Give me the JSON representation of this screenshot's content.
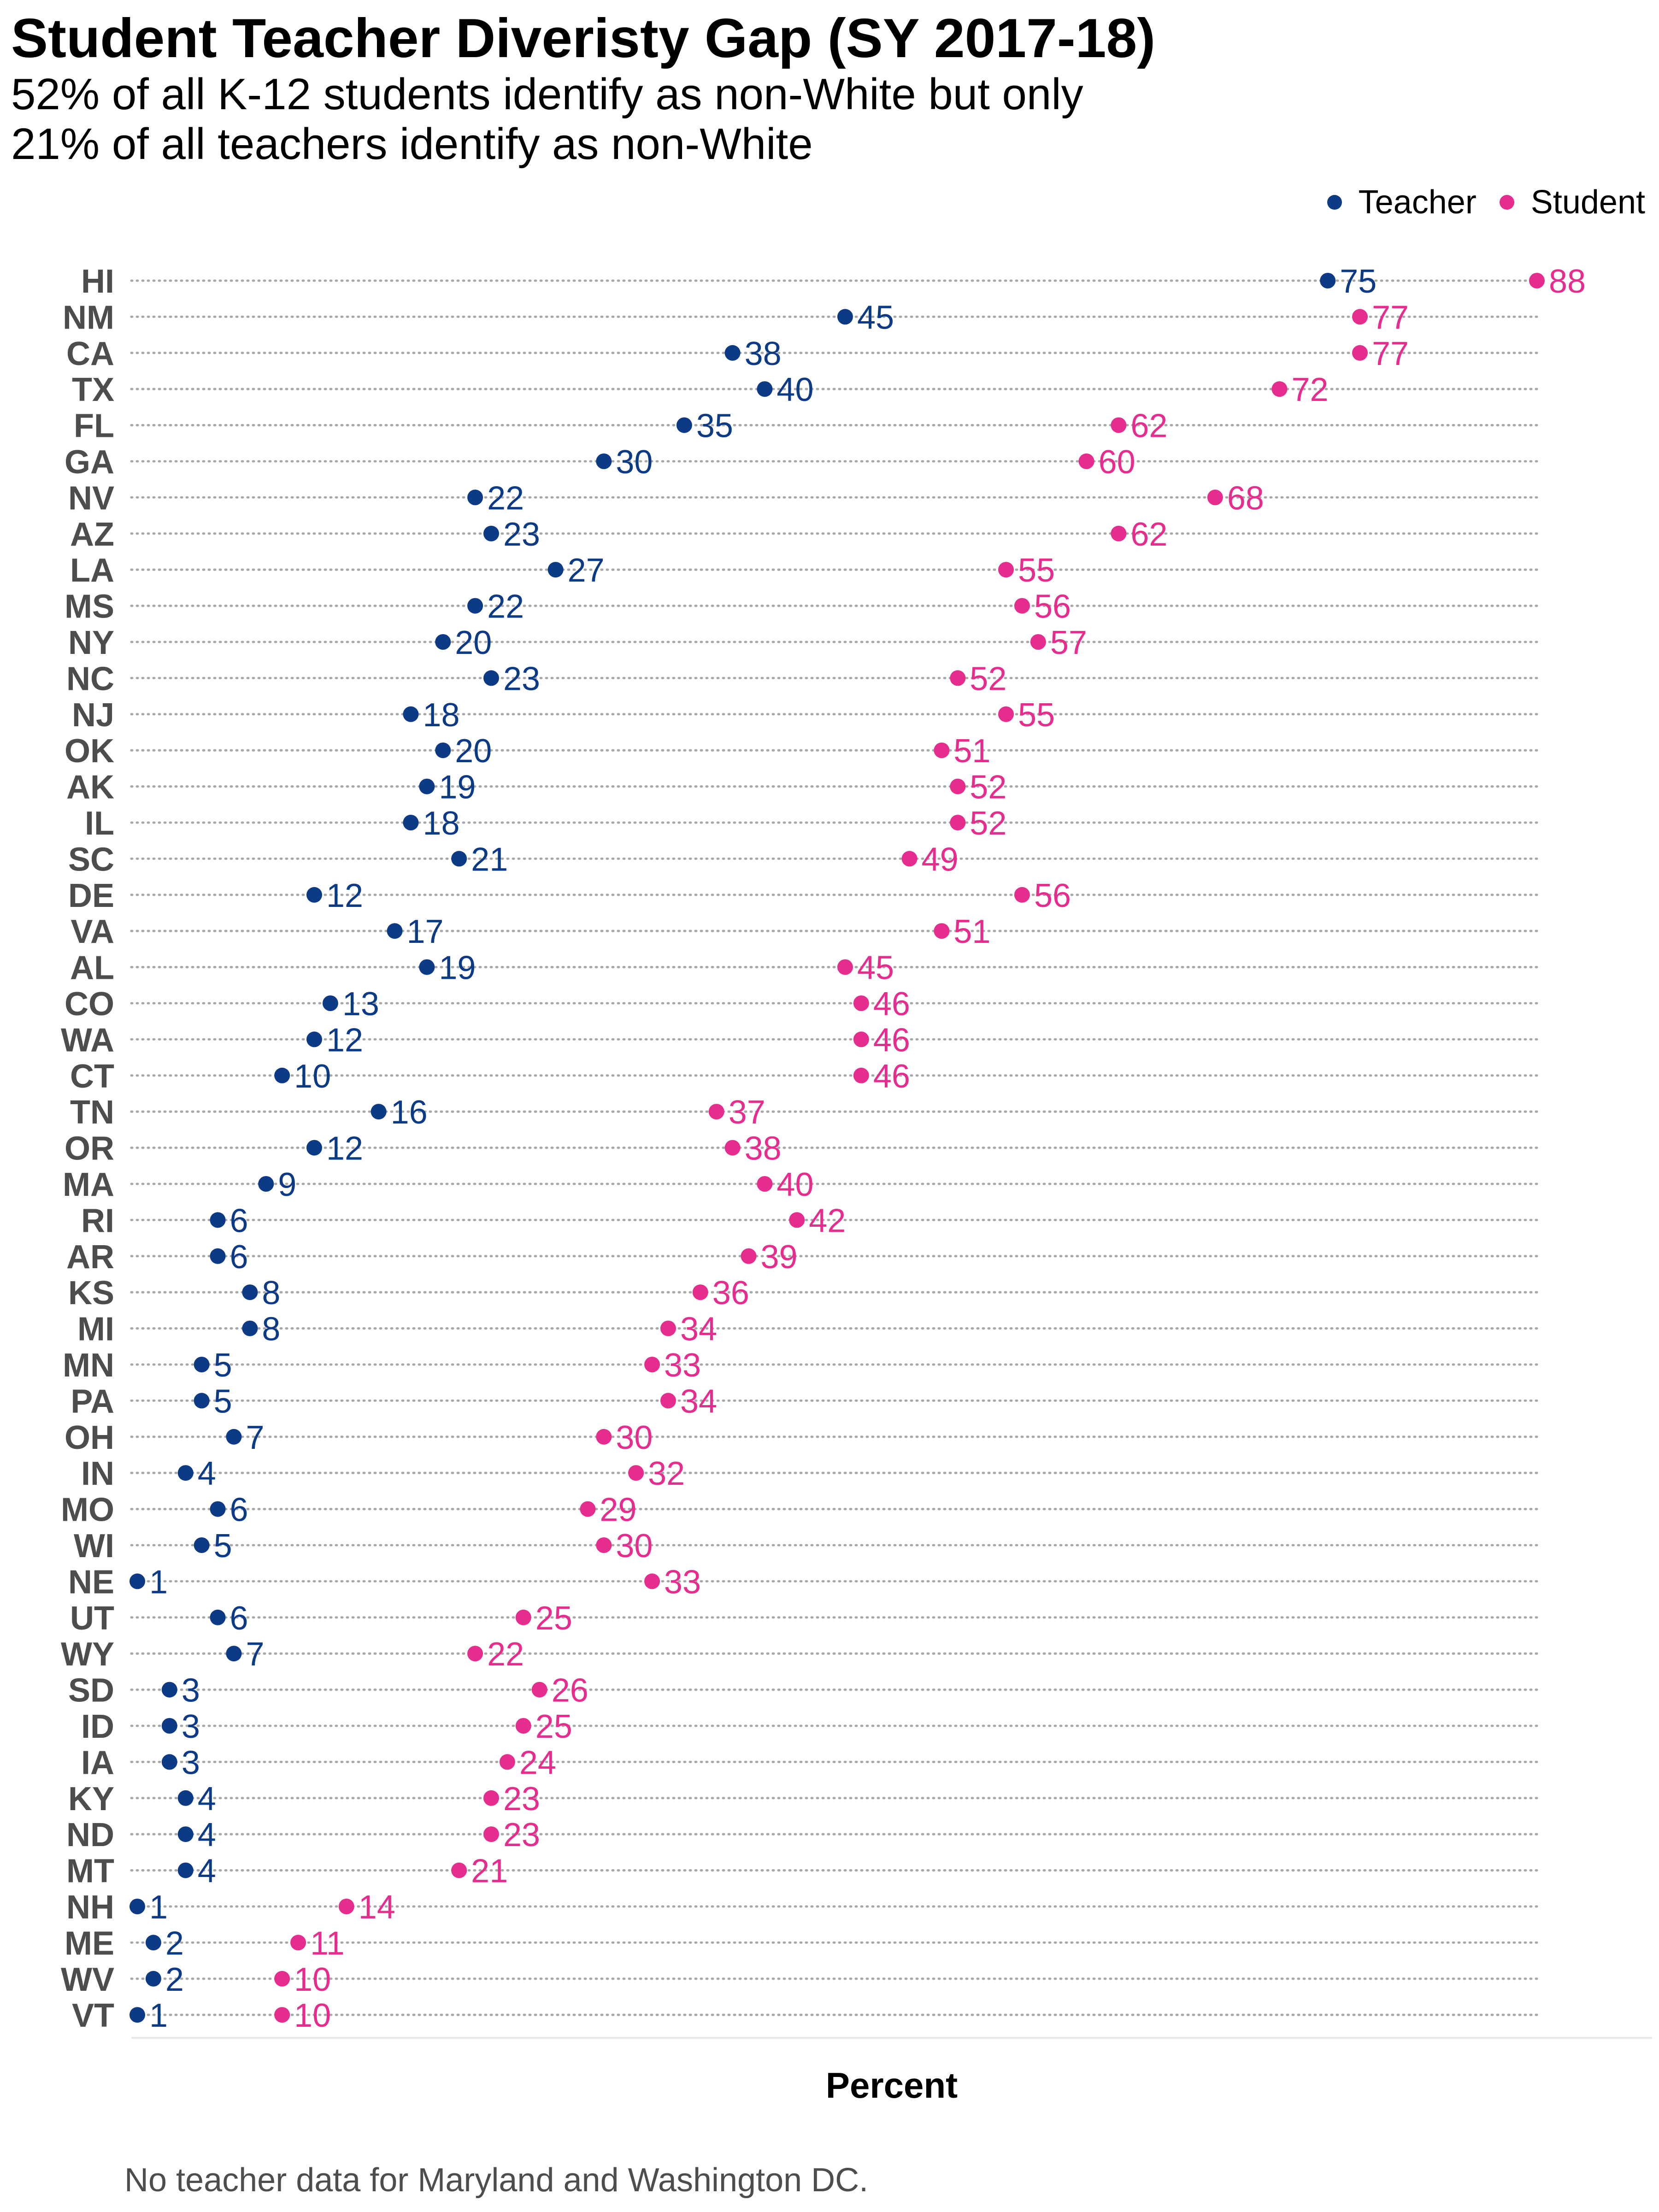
{
  "chart_data": {
    "type": "dot",
    "title": "Student Teacher Diveristy Gap (SY 2017-18)",
    "subtitle": [
      "52% of all K-12 students identify as non-White but only",
      "21% of all teachers identify as non-White"
    ],
    "xlabel": "Percent",
    "ylabel": "",
    "caption": "No teacher data for Maryland and Washington DC.",
    "legend": {
      "position": "top-right",
      "entries": [
        "Teacher",
        "Student"
      ]
    },
    "colors": {
      "teacher": "#0d3a84",
      "student": "#e52d8e",
      "connector": "#8a8a8a"
    },
    "grid": false,
    "xlim": [
      1,
      88
    ],
    "categories": [
      "HI",
      "NM",
      "CA",
      "TX",
      "FL",
      "GA",
      "NV",
      "AZ",
      "LA",
      "MS",
      "NY",
      "NC",
      "NJ",
      "OK",
      "AK",
      "IL",
      "SC",
      "DE",
      "VA",
      "AL",
      "CO",
      "WA",
      "CT",
      "TN",
      "OR",
      "MA",
      "RI",
      "AR",
      "KS",
      "MI",
      "MN",
      "PA",
      "OH",
      "IN",
      "MO",
      "WI",
      "NE",
      "UT",
      "WY",
      "SD",
      "ID",
      "IA",
      "KY",
      "ND",
      "MT",
      "NH",
      "ME",
      "WV",
      "VT"
    ],
    "series": [
      {
        "name": "Teacher",
        "values": [
          75,
          45,
          38,
          40,
          35,
          30,
          22,
          23,
          27,
          22,
          20,
          23,
          18,
          20,
          19,
          18,
          21,
          12,
          17,
          19,
          13,
          12,
          10,
          16,
          12,
          9,
          6,
          6,
          8,
          8,
          5,
          5,
          7,
          4,
          6,
          5,
          1,
          6,
          7,
          3,
          3,
          3,
          4,
          4,
          4,
          1,
          2,
          2,
          1
        ]
      },
      {
        "name": "Student",
        "values": [
          88,
          77,
          77,
          72,
          62,
          60,
          68,
          62,
          55,
          56,
          57,
          52,
          55,
          51,
          52,
          52,
          49,
          56,
          51,
          45,
          46,
          46,
          46,
          37,
          38,
          40,
          42,
          39,
          36,
          34,
          33,
          34,
          30,
          32,
          29,
          30,
          33,
          25,
          22,
          26,
          25,
          24,
          23,
          23,
          21,
          14,
          11,
          10,
          10
        ]
      }
    ]
  }
}
